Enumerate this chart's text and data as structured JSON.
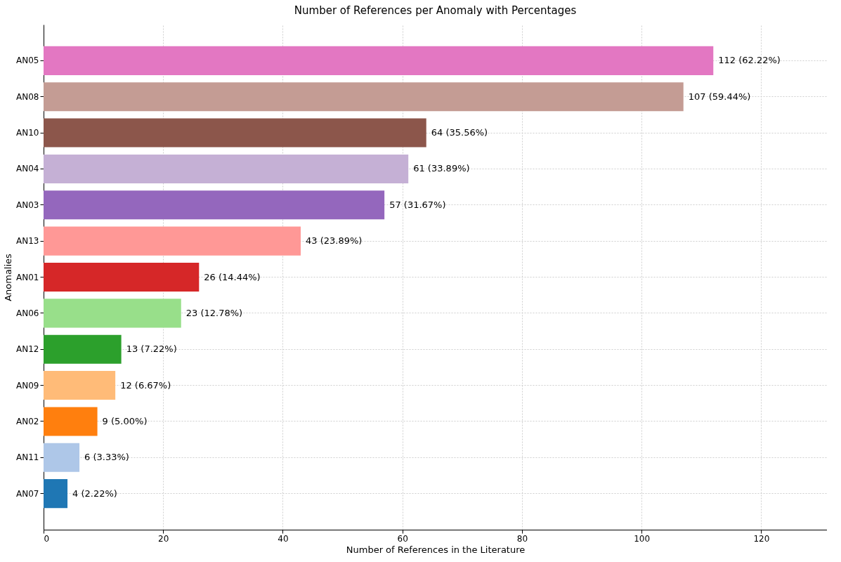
{
  "chart_data": {
    "type": "bar",
    "orientation": "horizontal",
    "title": "Number of References per Anomaly with Percentages",
    "xlabel": "Number of References in the Literature",
    "ylabel": "Anomalies",
    "categories": [
      "AN05",
      "AN08",
      "AN10",
      "AN04",
      "AN03",
      "AN13",
      "AN01",
      "AN06",
      "AN12",
      "AN09",
      "AN02",
      "AN11",
      "AN07"
    ],
    "values": [
      112,
      107,
      64,
      61,
      57,
      43,
      26,
      23,
      13,
      12,
      9,
      6,
      4
    ],
    "colors": [
      "#e377c2",
      "#c49c94",
      "#8c564b",
      "#c5b0d5",
      "#9467bd",
      "#ff9896",
      "#d62728",
      "#98df8a",
      "#2ca02c",
      "#ffbb78",
      "#ff7f0e",
      "#aec7e8",
      "#1f77b4"
    ],
    "value_labels": [
      "112 (62.22%)",
      "107 (59.44%)",
      "64 (35.56%)",
      "61 (33.89%)",
      "57 (31.67%)",
      "43 (23.89%)",
      "26 (14.44%)",
      "23 (12.78%)",
      "13 (7.22%)",
      "12 (6.67%)",
      "9 (5.00%)",
      "6 (3.33%)",
      "4 (2.22%)"
    ],
    "xlim": [
      0,
      131
    ],
    "xticks": [
      0,
      20,
      40,
      60,
      80,
      100,
      120
    ],
    "grid": true
  }
}
